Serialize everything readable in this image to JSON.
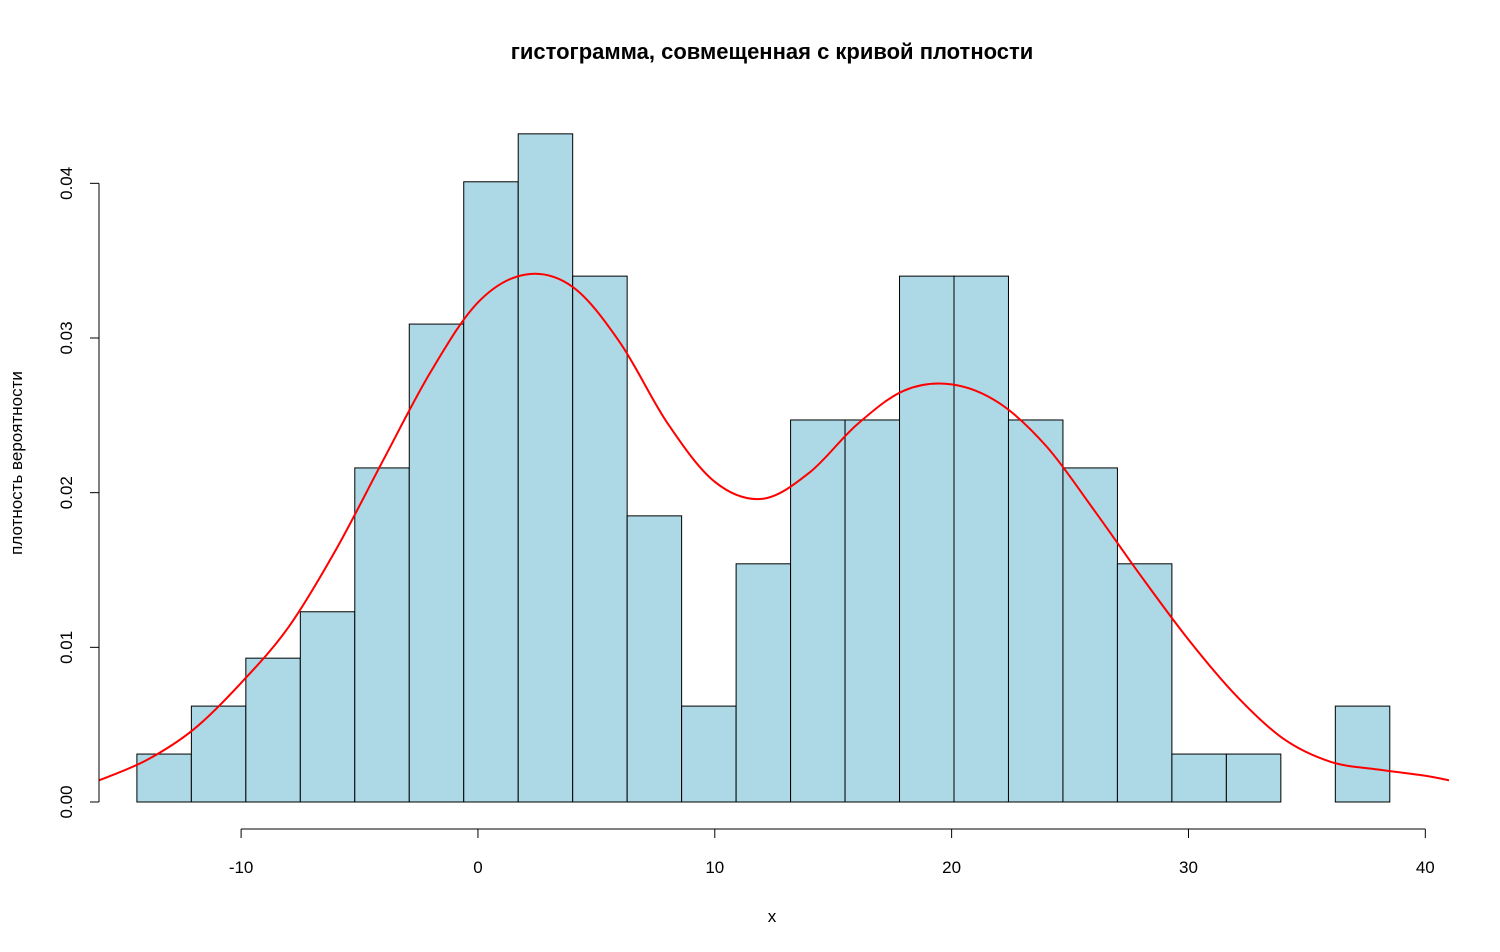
{
  "chart_data": {
    "type": "histogram",
    "title": "гистограмма, совмещенная с кривой плотности",
    "xlabel": "x",
    "ylabel": "плотность вероятности",
    "xlim": [
      -16,
      41
    ],
    "ylim": [
      0,
      0.045
    ],
    "x_ticks": [
      -10,
      0,
      10,
      20,
      30,
      40
    ],
    "y_ticks": [
      0,
      0.01,
      0.02,
      0.03,
      0.04
    ],
    "x_tick_labels": [
      "-10",
      "0",
      "10",
      "20",
      "30",
      "40"
    ],
    "y_tick_labels": [
      "0.00",
      "0.01",
      "0.02",
      "0.03",
      "0.04"
    ],
    "grid": false,
    "bar_color": "#ADD8E6",
    "bar_edge_color": "#000000",
    "curve_color": "#FF0000",
    "bins": [
      {
        "x0": -14.4,
        "x1": -12.1,
        "density": 0.0031
      },
      {
        "x0": -12.1,
        "x1": -9.8,
        "density": 0.0062
      },
      {
        "x0": -9.8,
        "x1": -7.5,
        "density": 0.0093
      },
      {
        "x0": -7.5,
        "x1": -5.2,
        "density": 0.0123
      },
      {
        "x0": -5.2,
        "x1": -2.9,
        "density": 0.0216
      },
      {
        "x0": -2.9,
        "x1": -0.6,
        "density": 0.0309
      },
      {
        "x0": -0.6,
        "x1": 1.7,
        "density": 0.0401
      },
      {
        "x0": 1.7,
        "x1": 4.0,
        "density": 0.0432
      },
      {
        "x0": 4.0,
        "x1": 6.3,
        "density": 0.034
      },
      {
        "x0": 6.3,
        "x1": 8.6,
        "density": 0.0185
      },
      {
        "x0": 8.6,
        "x1": 10.9,
        "density": 0.0062
      },
      {
        "x0": 10.9,
        "x1": 13.2,
        "density": 0.0154
      },
      {
        "x0": 13.2,
        "x1": 15.5,
        "density": 0.0247
      },
      {
        "x0": 15.5,
        "x1": 17.8,
        "density": 0.0247
      },
      {
        "x0": 17.8,
        "x1": 20.1,
        "density": 0.034
      },
      {
        "x0": 20.1,
        "x1": 22.4,
        "density": 0.034
      },
      {
        "x0": 22.4,
        "x1": 24.7,
        "density": 0.0247
      },
      {
        "x0": 24.7,
        "x1": 27.0,
        "density": 0.0216
      },
      {
        "x0": 27.0,
        "x1": 29.3,
        "density": 0.0154
      },
      {
        "x0": 29.3,
        "x1": 31.6,
        "density": 0.0031
      },
      {
        "x0": 31.6,
        "x1": 33.9,
        "density": 0.0031
      },
      {
        "x0": 33.9,
        "x1": 36.2,
        "density": 0
      },
      {
        "x0": 36.2,
        "x1": 38.5,
        "density": 0.0062
      }
    ],
    "density_curve": {
      "x": [
        -16,
        -14,
        -12,
        -10,
        -8,
        -6,
        -4,
        -2,
        0,
        2,
        4,
        6,
        8,
        10,
        12,
        14,
        16,
        18,
        20,
        22,
        24,
        26,
        28,
        30,
        32,
        34,
        36,
        38,
        40,
        41
      ],
      "y": [
        0.0014,
        0.0027,
        0.0047,
        0.0077,
        0.0113,
        0.0163,
        0.0221,
        0.0278,
        0.0323,
        0.0341,
        0.0333,
        0.0297,
        0.0245,
        0.0207,
        0.0196,
        0.0213,
        0.0244,
        0.0266,
        0.027,
        0.0258,
        0.023,
        0.0189,
        0.0146,
        0.0105,
        0.0069,
        0.0041,
        0.0026,
        0.0021,
        0.0017,
        0.0014
      ]
    }
  }
}
